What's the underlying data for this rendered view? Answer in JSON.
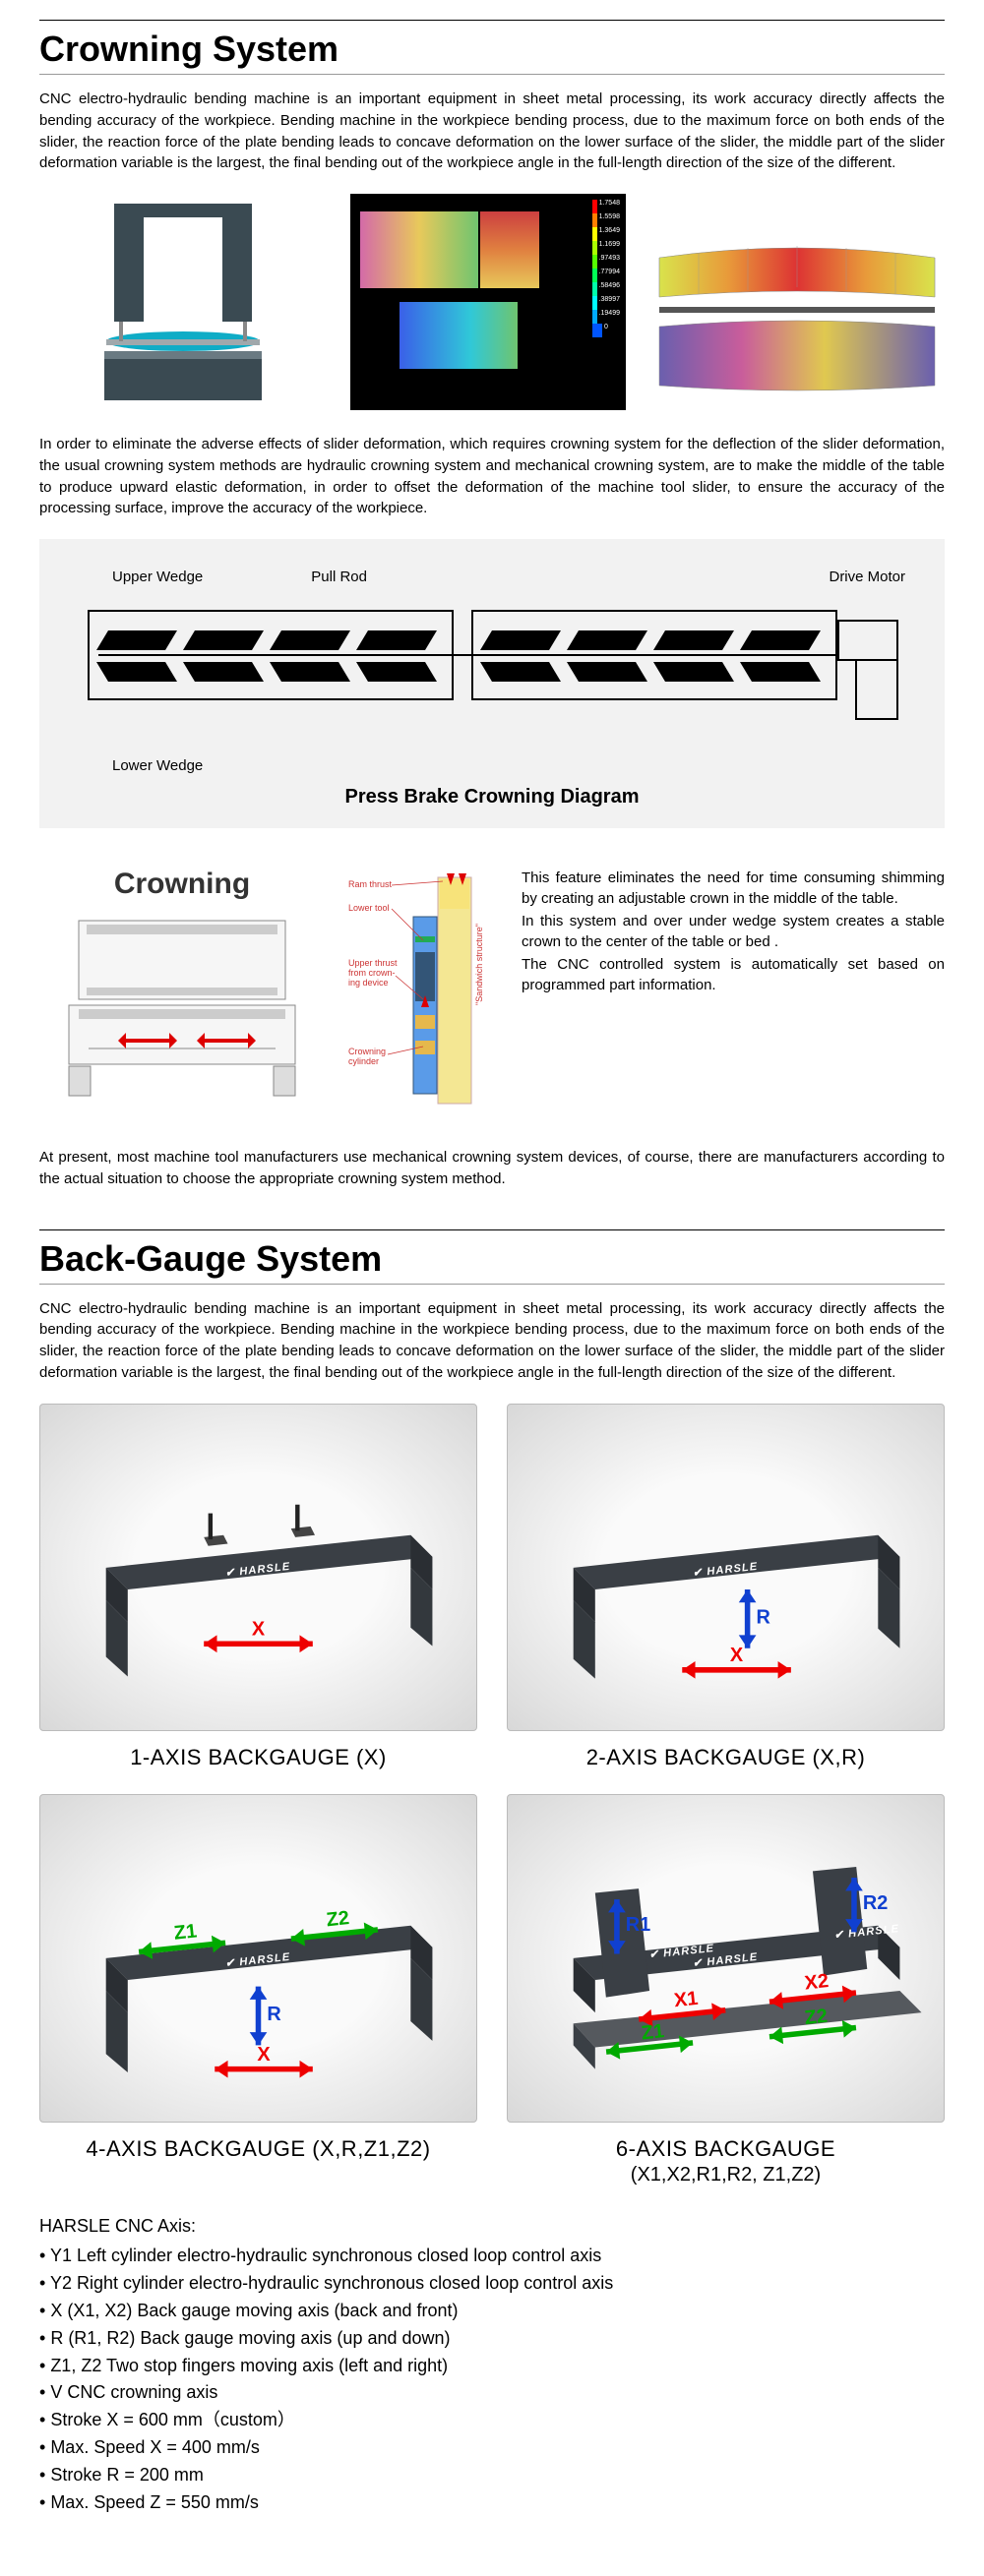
{
  "crowning": {
    "title": "Crowning System",
    "intro": "CNC electro-hydraulic bending machine is an important equipment in sheet metal processing, its work accuracy directly affects the bending accuracy of the workpiece. Bending machine in the workpiece bending process, due to the maximum force on both ends of the slider, the reaction force of the plate bending leads to concave deformation on the lower surface of the slider, the middle part of the slider deformation variable is the largest, the final bending out of the workpiece angle in the full-length direction of the size of the different.",
    "para2": "In order to eliminate the adverse effects of slider deformation, which requires crowning system for the deflection of the slider deformation, the usual crowning system methods are hydraulic crowning system and mechanical crowning system, are to make the middle of the table to produce upward elastic deformation, in order to offset the deformation of the machine tool slider, to ensure the accuracy of the processing surface, improve the accuracy of the workpiece.",
    "diagram": {
      "upper_wedge": "Upper Wedge",
      "pull_rod": "Pull Rod",
      "drive_motor": "Drive Motor",
      "lower_wedge": "Lower Wedge",
      "title": "Press Brake Crowning Diagram"
    },
    "side": {
      "title": "Crowning",
      "labels": {
        "ram_thrust": "Ram thrust",
        "lower_tool": "Lower tool",
        "upper_thrust": "Upper thrust from crowning device",
        "crowning_cyl": "Crowning cylinder",
        "sandwich": "\"Sandwich structure\""
      },
      "text1": "This feature eliminates the need for time consuming shimming by creating an adjustable crown in the middle of the table.",
      "text2": "In this system and over under wedge system creates a stable crown to the center of the table or bed .",
      "text3": "The CNC controlled system is automatically set based on programmed part information."
    },
    "para3": "At present, most machine tool manufacturers use mechanical crowning system devices, of course, there are manufacturers according to the actual situation to choose the appropriate crowning system method.",
    "fea_legend": [
      {
        "color": "#ff0000",
        "v": "1.7548"
      },
      {
        "color": "#ff7f00",
        "v": "1.5598"
      },
      {
        "color": "#ffff00",
        "v": "1.3649"
      },
      {
        "color": "#aaff00",
        "v": "1.1699"
      },
      {
        "color": "#55ff00",
        "v": ".97493"
      },
      {
        "color": "#00ff55",
        "v": ".77994"
      },
      {
        "color": "#00ffaa",
        "v": ".58496"
      },
      {
        "color": "#00ffff",
        "v": ".38997"
      },
      {
        "color": "#00aaff",
        "v": ".19499"
      },
      {
        "color": "#0055ff",
        "v": "0"
      }
    ]
  },
  "backgauge": {
    "title": "Back-Gauge System",
    "intro": "CNC electro-hydraulic bending machine is an important equipment in sheet metal processing, its work accuracy directly affects the bending accuracy of the workpiece. Bending machine in the workpiece bending process, due to the maximum force on both ends of the slider, the reaction force of the plate bending leads to concave deformation on the lower surface of the slider, the middle part of the slider deformation variable is the largest, the final bending out of the workpiece angle in the full-length direction of the size of the different.",
    "items": [
      {
        "caption": "1-AXIS BACKGAUGE (X)",
        "sub": "",
        "axes": [
          "X"
        ]
      },
      {
        "caption": "2-AXIS BACKGAUGE (X,R)",
        "sub": "",
        "axes": [
          "X",
          "R"
        ]
      },
      {
        "caption": "4-AXIS BACKGAUGE (X,R,Z1,Z2)",
        "sub": "",
        "axes": [
          "X",
          "R",
          "Z1",
          "Z2"
        ]
      },
      {
        "caption": "6-AXIS BACKGAUGE",
        "sub": "(X1,X2,R1,R2, Z1,Z2)",
        "axes": [
          "X1",
          "X2",
          "R1",
          "R2",
          "Z1",
          "Z2"
        ]
      }
    ],
    "brand": "HARSLE",
    "axis_title": "HARSLE CNC Axis:",
    "axis_list": [
      "Y1 Left cylinder electro-hydraulic synchronous closed loop control axis",
      "Y2 Right cylinder electro-hydraulic synchronous closed loop control axis",
      "X (X1, X2) Back gauge moving axis (back and front)",
      "R (R1, R2) Back gauge moving axis (up and down)",
      "Z1, Z2 Two stop fingers moving axis (left and right)",
      "V CNC crowning axis",
      "Stroke X = 600 mm（custom）",
      "Max. Speed X = 400 mm/s",
      "Stroke R = 200 mm",
      "Max. Speed Z = 550 mm/s"
    ]
  }
}
